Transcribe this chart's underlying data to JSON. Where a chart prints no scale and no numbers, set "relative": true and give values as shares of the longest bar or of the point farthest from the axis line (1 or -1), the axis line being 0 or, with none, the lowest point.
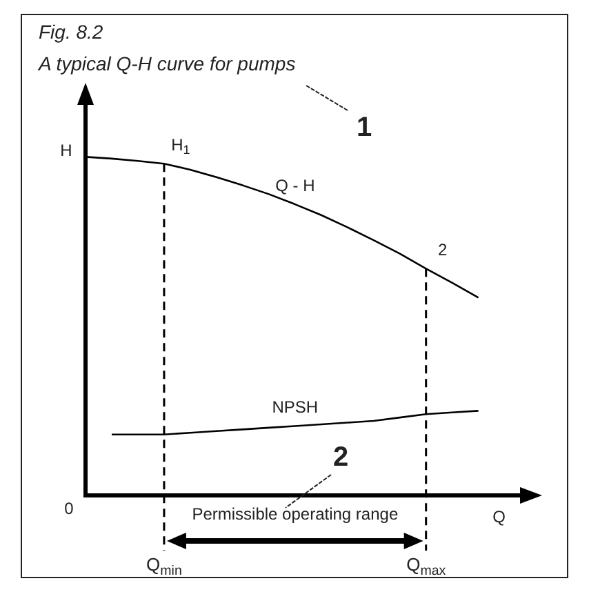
{
  "chart_data": {
    "type": "line",
    "title": "A typical Q-H curve for pumps",
    "xlabel": "Q",
    "ylabel": "H",
    "relative": true,
    "legend": false,
    "grid": false,
    "marker": "none",
    "line_style": "solid",
    "categories": [
      null,
      null,
      null,
      "Q$_{min}$",
      null,
      null,
      null,
      null,
      null,
      null,
      null,
      null,
      null,
      "Q$_{max}$",
      null,
      null
    ],
    "series": [
      {
        "name": "Q - H",
        "color": "#000000",
        "values": [
          1.0,
          0.995,
          0.988,
          0.98,
          0.962,
          0.94,
          0.916,
          0.89,
          0.86,
          0.828,
          0.792,
          0.754,
          0.714,
          0.67,
          0.628,
          0.584
        ]
      },
      {
        "name": "NPSH",
        "color": "#000000",
        "values": [
          null,
          0.18,
          0.18,
          0.18,
          0.185,
          0.19,
          0.195,
          0.2,
          0.205,
          0.21,
          0.215,
          0.22,
          0.23,
          0.24,
          0.245,
          0.25
        ]
      }
    ],
    "ref_lines": [
      {
        "axis": "x",
        "value": "Q$_{min}$",
        "line_style": "dashed",
        "color": "#000000"
      },
      {
        "axis": "x",
        "value": "Q$_{max}$",
        "line_style": "dashed",
        "color": "#000000"
      }
    ],
    "annotations": [
      "Fig. 8.2",
      "1",
      "2",
      "Permissible operating range",
      "0",
      {
        "text": "H$_{1}$",
        "x": "Q$_{min}$",
        "y": 0.98
      },
      {
        "text": "2",
        "x": "Q$_{max}$",
        "y": 0.67
      }
    ]
  }
}
